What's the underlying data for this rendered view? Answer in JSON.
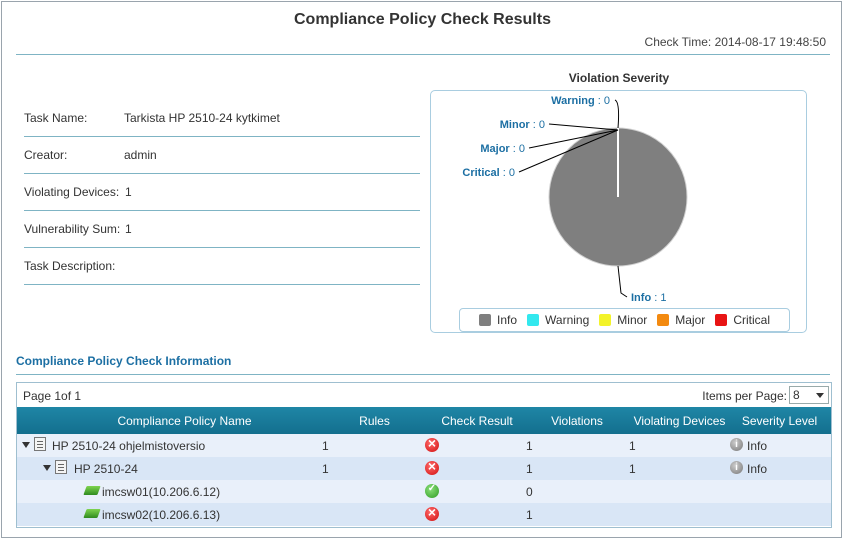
{
  "header": {
    "title": "Compliance Policy Check Results",
    "check_time_label": "Check Time:",
    "check_time_value": "2014-08-17 19:48:50"
  },
  "task": {
    "fields": [
      {
        "label": "Task Name:",
        "value": "Tarkista HP 2510-24 kytkimet"
      },
      {
        "label": "Creator:",
        "value": "admin"
      },
      {
        "label": "Violating Devices:",
        "value": "1"
      },
      {
        "label": "Vulnerability Sum:",
        "value": "1"
      },
      {
        "label": "Task Description:",
        "value": ""
      }
    ]
  },
  "chart_data": {
    "type": "pie",
    "title": "Violation Severity",
    "slices": [
      {
        "label": "Info",
        "value": 1,
        "color": "#7f7f7f"
      },
      {
        "label": "Warning",
        "value": 0,
        "color": "#33e8ee"
      },
      {
        "label": "Minor",
        "value": 0,
        "color": "#f3f32a"
      },
      {
        "label": "Major",
        "value": 0,
        "color": "#f38a10"
      },
      {
        "label": "Critical",
        "value": 0,
        "color": "#e81414"
      }
    ],
    "legend_placement": "bottom"
  },
  "section": {
    "title": "Compliance Policy Check Information"
  },
  "grid": {
    "page_info": "Page 1of 1",
    "items_per_page_label": "Items per Page:",
    "items_per_page_value": "8",
    "columns": [
      "Compliance Policy Name",
      "Rules",
      "Check Result",
      "Violations",
      "Violating Devices",
      "Severity Level"
    ],
    "rows": [
      {
        "name": "HP 2510-24 ohjelmistoversio",
        "rules": "1",
        "result": "fail",
        "violations": "1",
        "violating_devices": "1",
        "severity": "Info",
        "level": 0,
        "icon": "policy-doc-icon"
      },
      {
        "name": "HP 2510-24",
        "rules": "1",
        "result": "fail",
        "violations": "1",
        "violating_devices": "1",
        "severity": "Info",
        "level": 1,
        "icon": "policy-doc-icon"
      },
      {
        "name": "imcsw01(10.206.6.12)",
        "rules": "",
        "result": "pass",
        "violations": "0",
        "violating_devices": "",
        "severity": "",
        "level": 2,
        "icon": "switch-icon"
      },
      {
        "name": "imcsw02(10.206.6.13)",
        "rules": "",
        "result": "fail",
        "violations": "1",
        "violating_devices": "",
        "severity": "",
        "level": 2,
        "icon": "switch-icon"
      }
    ]
  },
  "colors": {
    "accent": "#1c6fa3",
    "header_bg": "#1a7a9a",
    "row_alt": "#dde9f7",
    "row": "#eef4fb"
  }
}
